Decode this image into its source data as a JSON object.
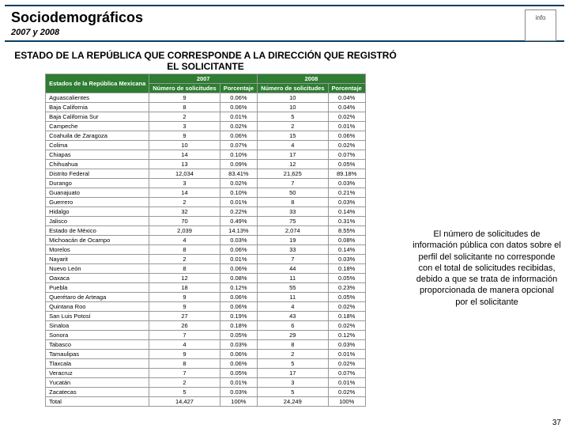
{
  "header": {
    "title": "Sociodemográficos",
    "subtitle": "2007 y 2008",
    "logo_text": "info"
  },
  "section_title": "ESTADO DE LA REPÚBLICA QUE CORRESPONDE A LA DIRECCIÓN QUE REGISTRÓ EL SOLICITANTE",
  "table": {
    "head_state": "Estados de la República Mexicana",
    "year1": "2007",
    "year2": "2008",
    "col_num": "Número de solicitudes",
    "col_pct": "Porcentaje",
    "rows": [
      {
        "s": "Aguascalientes",
        "n1": "9",
        "p1": "0.06%",
        "n2": "10",
        "p2": "0.04%"
      },
      {
        "s": "Baja California",
        "n1": "8",
        "p1": "0.06%",
        "n2": "10",
        "p2": "0.04%"
      },
      {
        "s": "Baja California Sur",
        "n1": "2",
        "p1": "0.01%",
        "n2": "5",
        "p2": "0.02%"
      },
      {
        "s": "Campeche",
        "n1": "3",
        "p1": "0.02%",
        "n2": "2",
        "p2": "0.01%"
      },
      {
        "s": "Coahuila de Zaragoza",
        "n1": "9",
        "p1": "0.06%",
        "n2": "15",
        "p2": "0.06%"
      },
      {
        "s": "Colima",
        "n1": "10",
        "p1": "0.07%",
        "n2": "4",
        "p2": "0.02%"
      },
      {
        "s": "Chiapas",
        "n1": "14",
        "p1": "0.10%",
        "n2": "17",
        "p2": "0.07%"
      },
      {
        "s": "Chihuahua",
        "n1": "13",
        "p1": "0.09%",
        "n2": "12",
        "p2": "0.05%"
      },
      {
        "s": "Distrito Federal",
        "n1": "12,034",
        "p1": "83.41%",
        "n2": "21,625",
        "p2": "89.18%"
      },
      {
        "s": "Durango",
        "n1": "3",
        "p1": "0.02%",
        "n2": "7",
        "p2": "0.03%"
      },
      {
        "s": "Guanajuato",
        "n1": "14",
        "p1": "0.10%",
        "n2": "50",
        "p2": "0.21%"
      },
      {
        "s": "Guerrero",
        "n1": "2",
        "p1": "0.01%",
        "n2": "8",
        "p2": "0.03%"
      },
      {
        "s": "Hidalgo",
        "n1": "32",
        "p1": "0.22%",
        "n2": "33",
        "p2": "0.14%"
      },
      {
        "s": "Jalisco",
        "n1": "70",
        "p1": "0.49%",
        "n2": "75",
        "p2": "0.31%"
      },
      {
        "s": "Estado de México",
        "n1": "2,039",
        "p1": "14.13%",
        "n2": "2,074",
        "p2": "8.55%"
      },
      {
        "s": "Michoacán de Ocampo",
        "n1": "4",
        "p1": "0.03%",
        "n2": "19",
        "p2": "0.08%"
      },
      {
        "s": "Morelos",
        "n1": "8",
        "p1": "0.06%",
        "n2": "33",
        "p2": "0.14%"
      },
      {
        "s": "Nayarit",
        "n1": "2",
        "p1": "0.01%",
        "n2": "7",
        "p2": "0.03%"
      },
      {
        "s": "Nuevo León",
        "n1": "8",
        "p1": "0.06%",
        "n2": "44",
        "p2": "0.18%"
      },
      {
        "s": "Oaxaca",
        "n1": "12",
        "p1": "0.08%",
        "n2": "11",
        "p2": "0.05%"
      },
      {
        "s": "Puebla",
        "n1": "18",
        "p1": "0.12%",
        "n2": "55",
        "p2": "0.23%"
      },
      {
        "s": "Querétaro de Arteaga",
        "n1": "9",
        "p1": "0.06%",
        "n2": "11",
        "p2": "0.05%"
      },
      {
        "s": "Quintana Roo",
        "n1": "9",
        "p1": "0.06%",
        "n2": "4",
        "p2": "0.02%"
      },
      {
        "s": "San Luis Potosí",
        "n1": "27",
        "p1": "0.19%",
        "n2": "43",
        "p2": "0.18%"
      },
      {
        "s": "Sinaloa",
        "n1": "26",
        "p1": "0.18%",
        "n2": "6",
        "p2": "0.02%"
      },
      {
        "s": "Sonora",
        "n1": "7",
        "p1": "0.05%",
        "n2": "29",
        "p2": "0.12%"
      },
      {
        "s": "Tabasco",
        "n1": "4",
        "p1": "0.03%",
        "n2": "8",
        "p2": "0.03%"
      },
      {
        "s": "Tamaulipas",
        "n1": "9",
        "p1": "0.06%",
        "n2": "2",
        "p2": "0.01%"
      },
      {
        "s": "Tlaxcala",
        "n1": "8",
        "p1": "0.06%",
        "n2": "5",
        "p2": "0.02%"
      },
      {
        "s": "Veracruz",
        "n1": "7",
        "p1": "0.05%",
        "n2": "17",
        "p2": "0.07%"
      },
      {
        "s": "Yucatán",
        "n1": "2",
        "p1": "0.01%",
        "n2": "3",
        "p2": "0.01%"
      },
      {
        "s": "Zacatecas",
        "n1": "5",
        "p1": "0.03%",
        "n2": "5",
        "p2": "0.02%"
      },
      {
        "s": "Total",
        "n1": "14,427",
        "p1": "100%",
        "n2": "24,249",
        "p2": "100%"
      }
    ]
  },
  "note": "El número de solicitudes de información pública con datos sobre el perfil del solicitante no corresponde con el total de solicitudes recibidas, debido a que se trata de información proporcionada de manera opcional por el solicitante",
  "page_number": "37",
  "colors": {
    "header_border": "#0a3d62",
    "table_header_bg": "#2e7d32",
    "table_header_fg": "#ffffff"
  }
}
